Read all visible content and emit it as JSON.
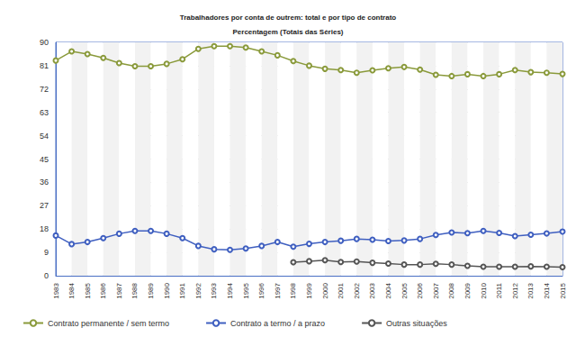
{
  "chart_data": {
    "type": "line",
    "title": "Trabalhadores por conta de outrem: total e por tipo de contrato",
    "subtitle": "Percentagem (Totais das Séries)",
    "categories": [
      "1983",
      "1984",
      "1985",
      "1986",
      "1987",
      "1988",
      "1989",
      "1990",
      "1991",
      "1992",
      "1993",
      "1994",
      "1995",
      "1996",
      "1997",
      "1998",
      "1999",
      "2000",
      "2001",
      "2002",
      "2003",
      "2004",
      "2005",
      "2006",
      "2007",
      "2008",
      "2009",
      "2010",
      "2011",
      "2012",
      "2013",
      "2014",
      "2015"
    ],
    "series": [
      {
        "name": "Contrato permanente / sem termo",
        "color": "#8a9a3b",
        "marker": "circle",
        "values": [
          83,
          86.5,
          85.5,
          84,
          82,
          80.8,
          80.8,
          81.7,
          83.5,
          87.5,
          88.5,
          88.5,
          88,
          86.5,
          85,
          82.8,
          81,
          79.8,
          79.3,
          78.3,
          79.2,
          80,
          80.5,
          79.5,
          77.5,
          77,
          77.7,
          77,
          77.7,
          79.3,
          78.5,
          78.3,
          77.8
        ]
      },
      {
        "name": "Contrato a termo / a prazo",
        "color": "#3f5fc0",
        "marker": "circle",
        "values": [
          15.5,
          12.2,
          13,
          14.5,
          16.2,
          17.3,
          17.3,
          16.2,
          14.5,
          11.5,
          10.2,
          10,
          10.5,
          11.5,
          13,
          11.2,
          12.3,
          13,
          13.5,
          14.2,
          13.9,
          13.4,
          13.6,
          14.2,
          15.7,
          16.7,
          16.4,
          17.3,
          16.5,
          15.3,
          15.8,
          16.3,
          17
        ]
      },
      {
        "name": "Outras situações",
        "color": "#555555",
        "marker": "circle",
        "values": [
          null,
          null,
          null,
          null,
          null,
          null,
          null,
          null,
          null,
          null,
          null,
          null,
          null,
          null,
          null,
          5.2,
          5.6,
          6,
          5.3,
          5.5,
          5,
          4.7,
          4.3,
          4.3,
          4.6,
          4.3,
          3.8,
          3.5,
          3.5,
          3.5,
          3.6,
          3.5,
          3.3
        ]
      }
    ],
    "ylim": [
      0,
      90
    ],
    "yticks": [
      0,
      9,
      18,
      27,
      36,
      45,
      54,
      63,
      72,
      81,
      90
    ],
    "grid": true,
    "legend": "bottom"
  }
}
